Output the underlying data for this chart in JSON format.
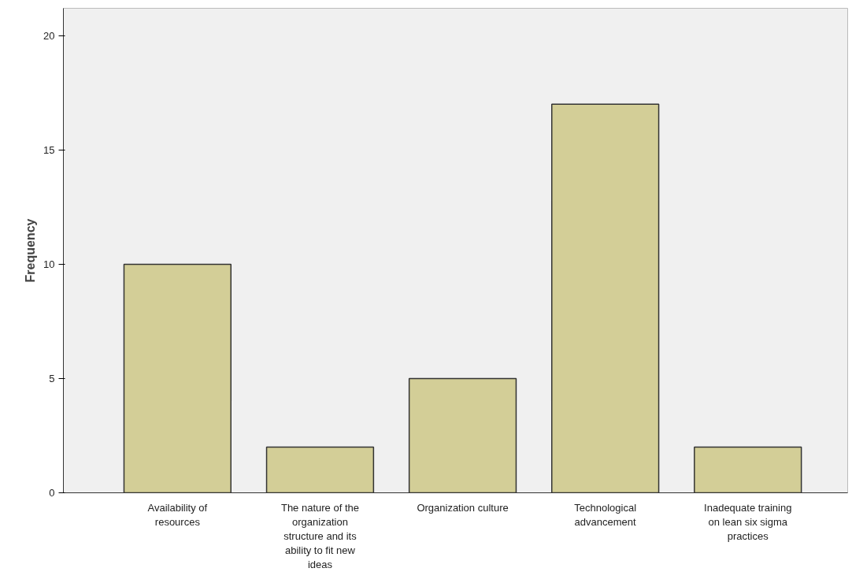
{
  "chart_data": {
    "type": "bar",
    "ylabel": "Frequency",
    "categories": [
      "Availability of resources",
      "The nature of the organization structure and its ability to fit new ideas",
      "Organization culture",
      "Technological advancement",
      "Inadequate training on lean six sigma practices"
    ],
    "values": [
      10,
      2,
      5,
      17,
      2
    ],
    "color": "#d3ce97",
    "ylim": [
      0,
      21.2
    ],
    "yticks": [
      0,
      5,
      10,
      15,
      20
    ],
    "grid": false
  }
}
